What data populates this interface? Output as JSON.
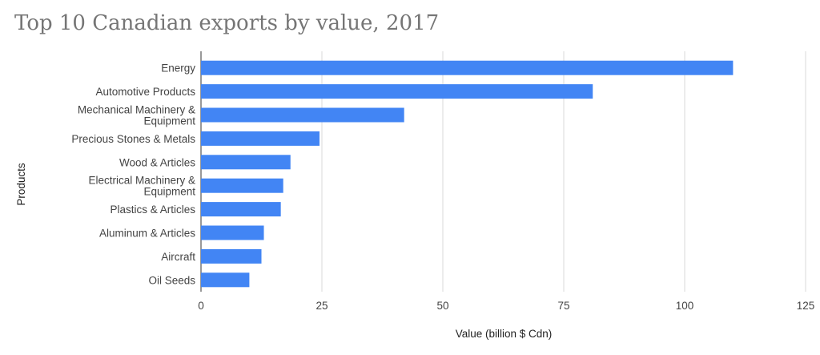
{
  "chart_data": {
    "type": "bar",
    "orientation": "horizontal",
    "title": "Top 10 Canadian exports by value, 2017",
    "xlabel": "Value (billion $ Cdn)",
    "ylabel": "Products",
    "categories": [
      [
        "Energy"
      ],
      [
        "Automotive Products"
      ],
      [
        "Mechanical Machinery &",
        "Equipment"
      ],
      [
        "Precious Stones & Metals"
      ],
      [
        "Wood & Articles"
      ],
      [
        "Electrical Machinery &",
        "Equipment"
      ],
      [
        "Plastics & Articles"
      ],
      [
        "Aluminum & Articles"
      ],
      [
        "Aircraft"
      ],
      [
        "Oil Seeds"
      ]
    ],
    "values": [
      110,
      81,
      42,
      24.5,
      18.5,
      17,
      16.5,
      13,
      12.5,
      10
    ],
    "xlim": [
      0,
      125
    ],
    "xticks": [
      0,
      25,
      50,
      75,
      100,
      125
    ],
    "grid": true,
    "legend": "none",
    "bar_color": "#4285f4",
    "grid_color": "#d9d9d9"
  }
}
